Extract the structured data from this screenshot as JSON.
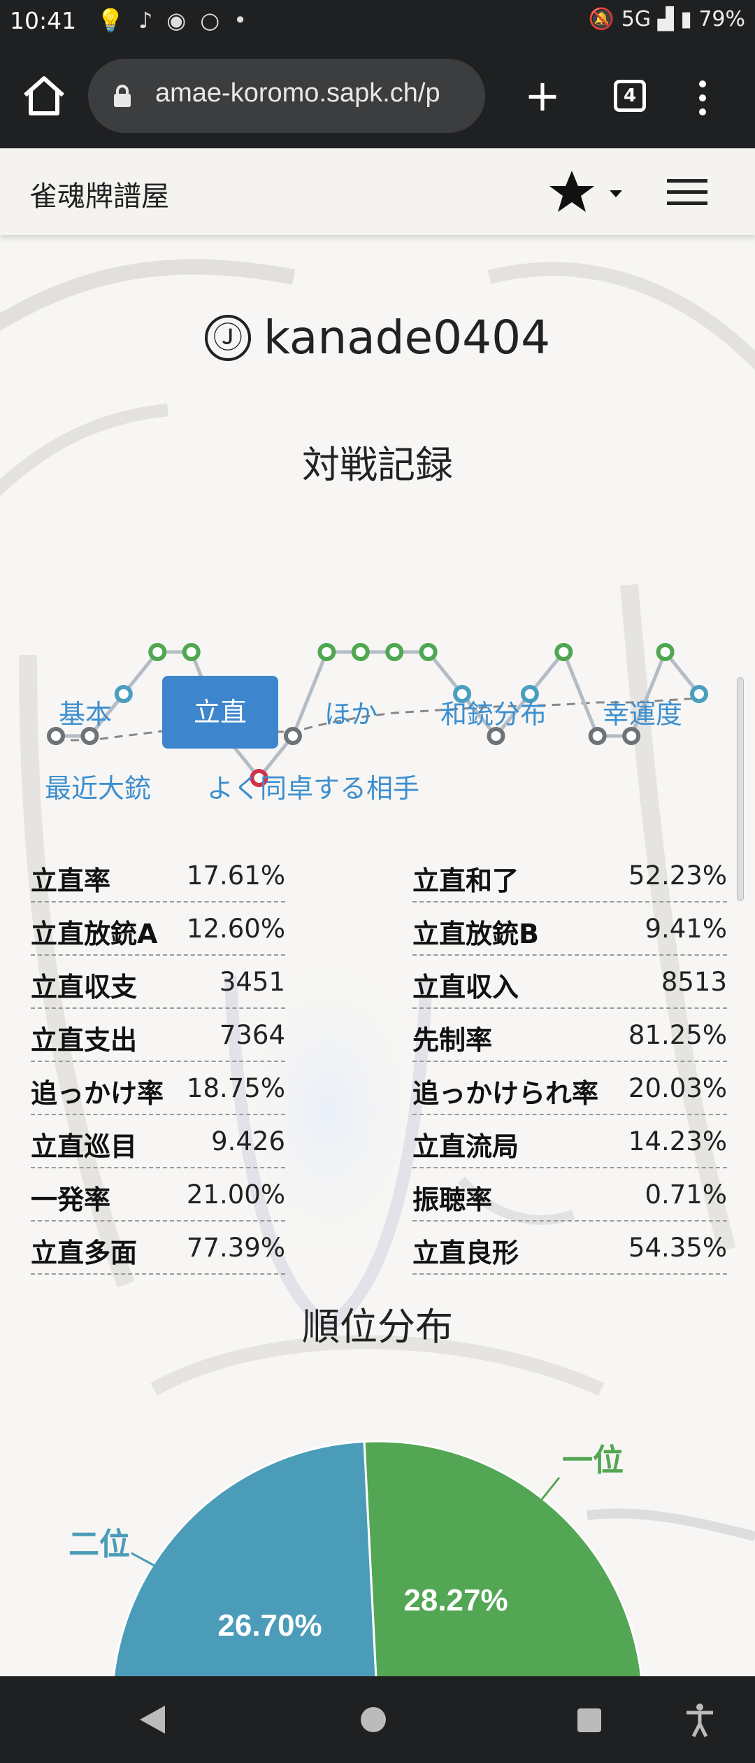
{
  "status_bar": {
    "time": "10:41",
    "icons": [
      "lightbulb-icon",
      "music-icon",
      "shazam-icon",
      "circle-icon",
      "dot-icon"
    ],
    "network": "5G",
    "battery": "79%"
  },
  "browser": {
    "url": "amae-koromo.sapk.ch/p",
    "tab_count": "4"
  },
  "site": {
    "brand": "雀魂牌譜屋"
  },
  "player": {
    "mode_icon": "Ⓙ",
    "name": "kanade0404"
  },
  "record_title": "対戦記録",
  "rank_chart": {
    "ranks": [
      3,
      3,
      2,
      1,
      1,
      3,
      4,
      3,
      1,
      1,
      1,
      1,
      2,
      3,
      2,
      1,
      3,
      3,
      1,
      2
    ],
    "trend": [
      3.1,
      3.1,
      3.0,
      2.9,
      2.8,
      2.85,
      2.9,
      2.9,
      2.7,
      2.55,
      2.45,
      2.4,
      2.35,
      2.3,
      2.28,
      2.25,
      2.2,
      2.2,
      2.15,
      2.1
    ],
    "colors": {
      "1": "#4fa84f",
      "2": "#4a9fbf",
      "3": "#6e7378",
      "4": "#d0334a"
    }
  },
  "tabs": [
    {
      "label": "基本"
    },
    {
      "label": "立直"
    },
    {
      "label": "ほか"
    },
    {
      "label": "和銃分布"
    },
    {
      "label": "幸運度"
    },
    {
      "label": "最近大銃"
    },
    {
      "label": "よく同卓する相手"
    }
  ],
  "active_tab": "立直",
  "stats_left": [
    {
      "label": "立直率",
      "value": "17.61%"
    },
    {
      "label": "立直放銃A",
      "value": "12.60%"
    },
    {
      "label": "立直収支",
      "value": "3451"
    },
    {
      "label": "立直支出",
      "value": "7364"
    },
    {
      "label": "追っかけ率",
      "value": "18.75%"
    },
    {
      "label": "立直巡目",
      "value": "9.426"
    },
    {
      "label": "一発率",
      "value": "21.00%"
    },
    {
      "label": "立直多面",
      "value": "77.39%"
    }
  ],
  "stats_right": [
    {
      "label": "立直和了",
      "value": "52.23%"
    },
    {
      "label": "立直放銃B",
      "value": "9.41%"
    },
    {
      "label": "立直収入",
      "value": "8513"
    },
    {
      "label": "先制率",
      "value": "81.25%"
    },
    {
      "label": "追っかけられ率",
      "value": "20.03%"
    },
    {
      "label": "立直流局",
      "value": "14.23%"
    },
    {
      "label": "振聴率",
      "value": "0.71%"
    },
    {
      "label": "立直良形",
      "value": "54.35%"
    }
  ],
  "rank_dist_title": "順位分布",
  "chart_data": {
    "type": "pie",
    "slices": [
      {
        "label": "一位",
        "value": 28.27,
        "text": "28.27%",
        "color": "#53a653"
      },
      {
        "label": "二位",
        "value": 26.7,
        "text": "26.70%",
        "color": "#4b9cb8"
      }
    ]
  }
}
